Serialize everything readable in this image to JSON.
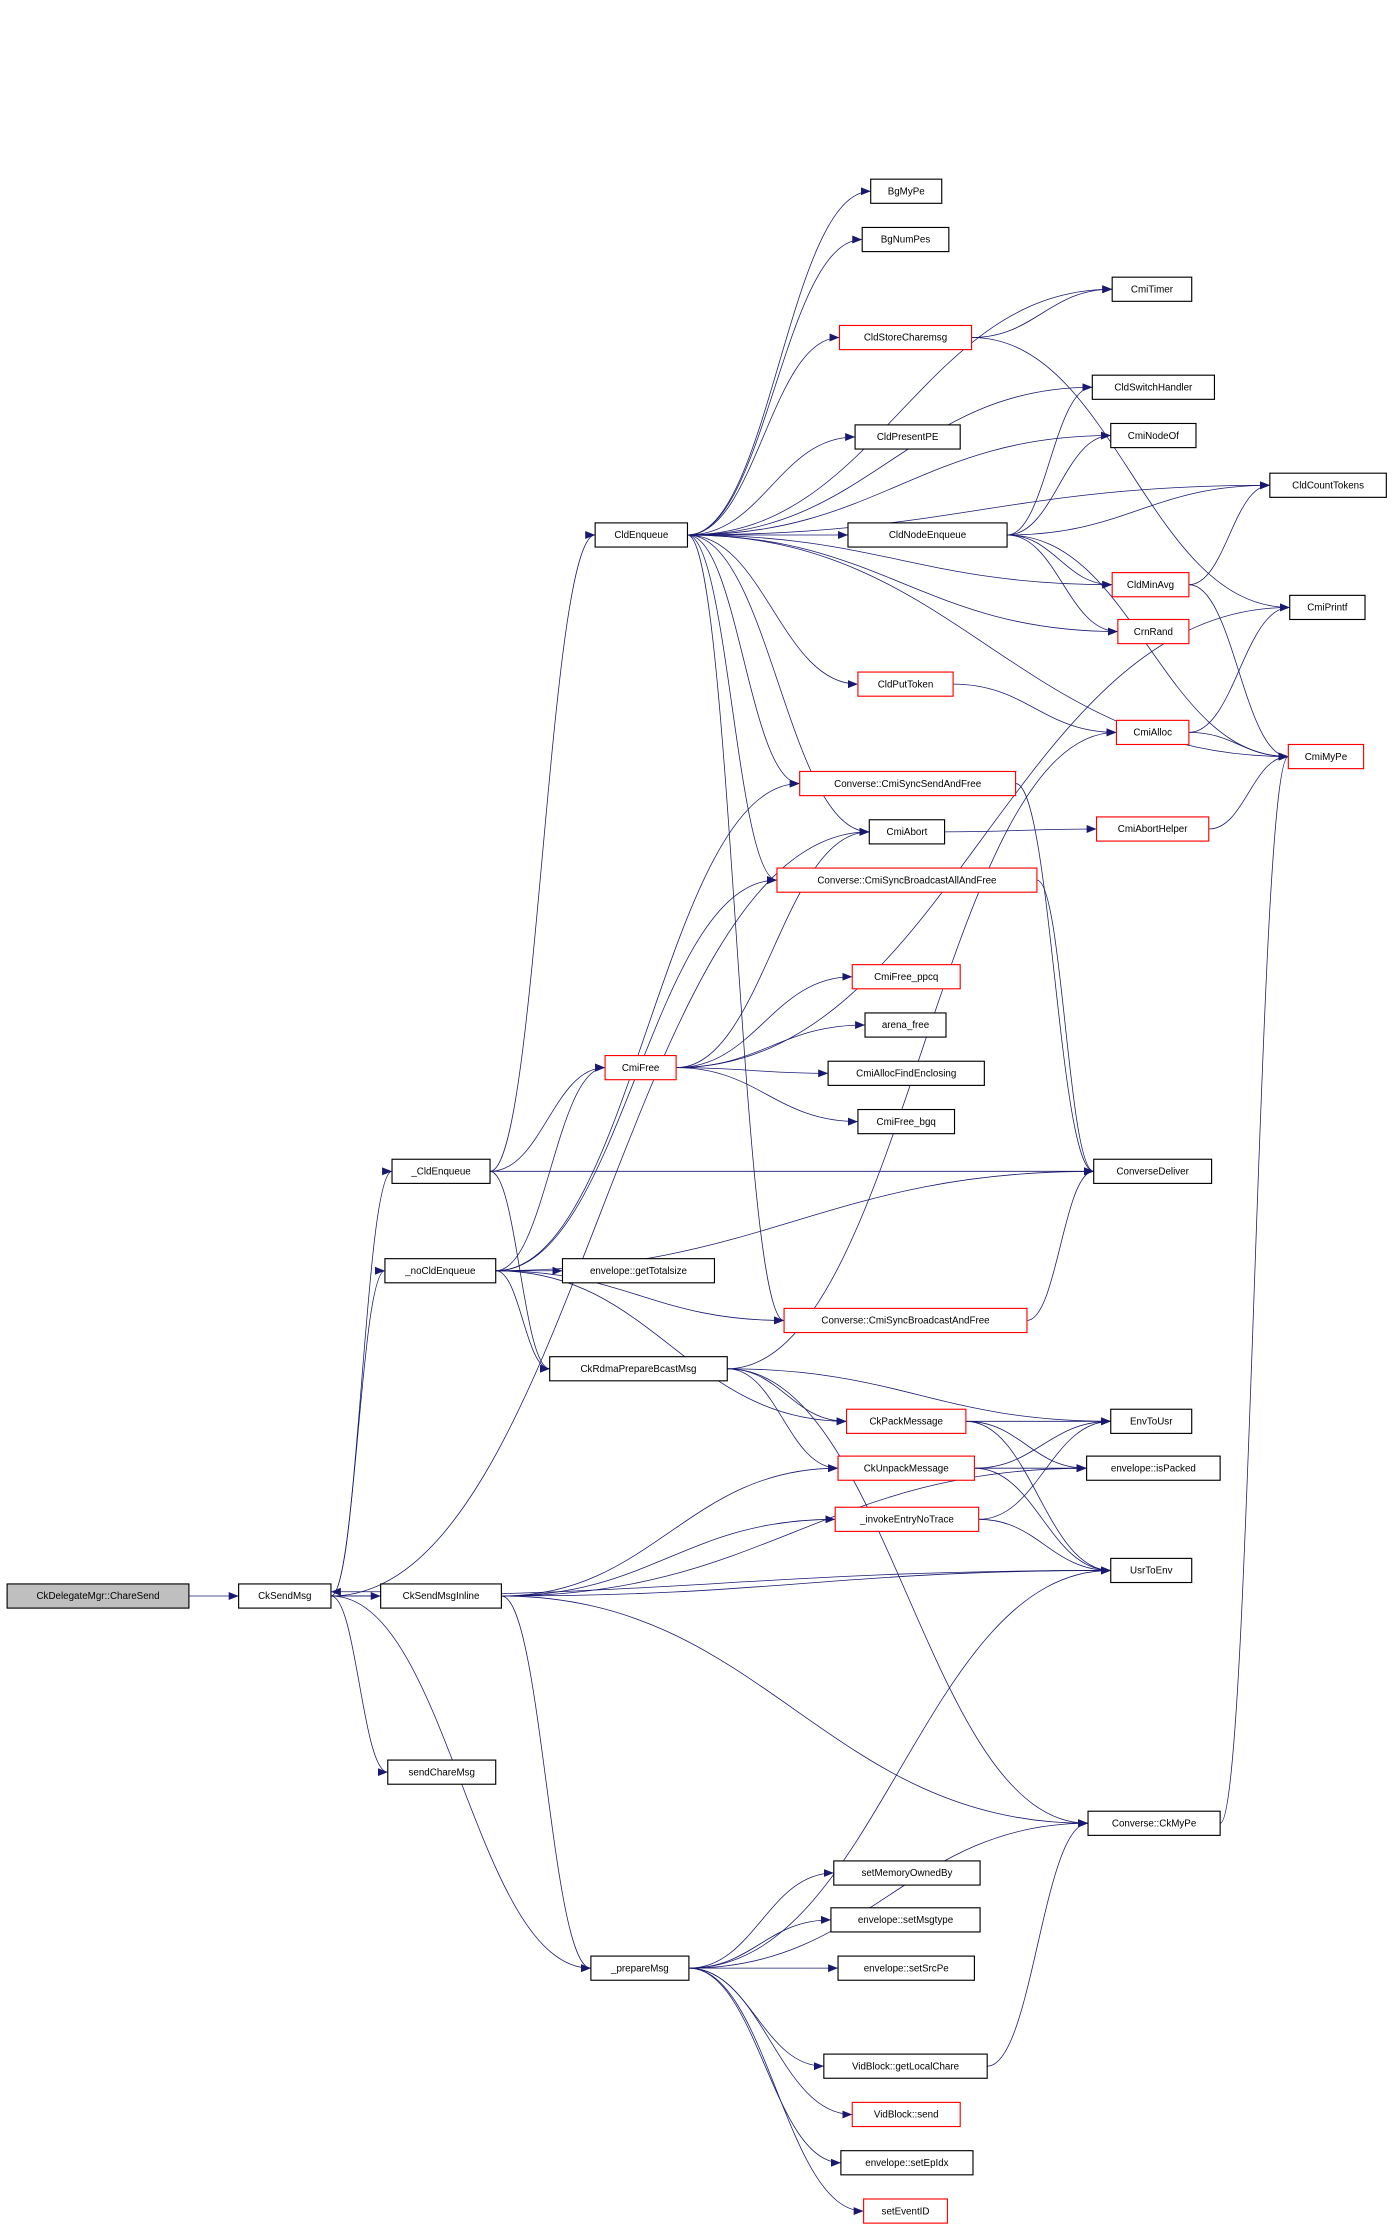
{
  "colors": {
    "edge": "#191970",
    "root_fill": "#bfbfbf",
    "link_border": "#000000",
    "undocumented_border": "#ff0000"
  },
  "nodes": [
    {
      "id": "root",
      "label": "CkDelegateMgr::ChareSend",
      "kind": "root"
    },
    {
      "id": "CkSendMsg",
      "label": "CkSendMsg",
      "kind": "black"
    },
    {
      "id": "CkSendMsgInline",
      "label": "CkSendMsgInline",
      "kind": "black"
    },
    {
      "id": "sendChareMsg",
      "label": "sendChareMsg",
      "kind": "black"
    },
    {
      "id": "_prepareMsg",
      "label": "_prepareMsg",
      "kind": "black"
    },
    {
      "id": "_CldEnqueue",
      "label": "_CldEnqueue",
      "kind": "black"
    },
    {
      "id": "_noCldEnqueue",
      "label": "_noCldEnqueue",
      "kind": "black"
    },
    {
      "id": "CldEnqueue",
      "label": "CldEnqueue",
      "kind": "black"
    },
    {
      "id": "getTotalsize",
      "label": "envelope::getTotalsize",
      "kind": "black"
    },
    {
      "id": "CkRdma",
      "label": "CkRdmaPrepareBcastMsg",
      "kind": "black"
    },
    {
      "id": "CmiFree",
      "label": "CmiFree",
      "kind": "red"
    },
    {
      "id": "CmiFree_ppcq",
      "label": "CmiFree_ppcq",
      "kind": "red"
    },
    {
      "id": "arena_free",
      "label": "arena_free",
      "kind": "black"
    },
    {
      "id": "CmiAllocFindEnclosing",
      "label": "CmiAllocFindEnclosing",
      "kind": "black"
    },
    {
      "id": "CmiFree_bgq",
      "label": "CmiFree_bgq",
      "kind": "black"
    },
    {
      "id": "ConverseDeliver",
      "label": "ConverseDeliver",
      "kind": "black"
    },
    {
      "id": "SyncBcast",
      "label": "Converse::CmiSyncBroadcastAndFree",
      "kind": "red"
    },
    {
      "id": "SyncSend",
      "label": "Converse::CmiSyncSendAndFree",
      "kind": "red"
    },
    {
      "id": "CmiAbort",
      "label": "CmiAbort",
      "kind": "black"
    },
    {
      "id": "SyncBcastAll",
      "label": "Converse::CmiSyncBroadcastAllAndFree",
      "kind": "red"
    },
    {
      "id": "BgMyPe",
      "label": "BgMyPe",
      "kind": "black"
    },
    {
      "id": "BgNumPes",
      "label": "BgNumPes",
      "kind": "black"
    },
    {
      "id": "CmiTimer",
      "label": "CmiTimer",
      "kind": "black"
    },
    {
      "id": "CldStoreCharemsg",
      "label": "CldStoreCharemsg",
      "kind": "red"
    },
    {
      "id": "CldSwitchHandler",
      "label": "CldSwitchHandler",
      "kind": "black"
    },
    {
      "id": "CldPresentPE",
      "label": "CldPresentPE",
      "kind": "black"
    },
    {
      "id": "CmiNodeOf",
      "label": "CmiNodeOf",
      "kind": "black"
    },
    {
      "id": "CldNodeEnqueue",
      "label": "CldNodeEnqueue",
      "kind": "black"
    },
    {
      "id": "CldCountTokens",
      "label": "CldCountTokens",
      "kind": "black"
    },
    {
      "id": "CldMinAvg",
      "label": "CldMinAvg",
      "kind": "red"
    },
    {
      "id": "CrnRand",
      "label": "CrnRand",
      "kind": "red"
    },
    {
      "id": "CmiPrintf",
      "label": "CmiPrintf",
      "kind": "black"
    },
    {
      "id": "CldPutToken",
      "label": "CldPutToken",
      "kind": "red"
    },
    {
      "id": "CmiAlloc",
      "label": "CmiAlloc",
      "kind": "red"
    },
    {
      "id": "CmiMyPe",
      "label": "CmiMyPe",
      "kind": "red"
    },
    {
      "id": "CmiAbortHelper",
      "label": "CmiAbortHelper",
      "kind": "red"
    },
    {
      "id": "CkPackMessage",
      "label": "CkPackMessage",
      "kind": "red"
    },
    {
      "id": "CkUnpackMessage",
      "label": "CkUnpackMessage",
      "kind": "red"
    },
    {
      "id": "invokeEntry",
      "label": "_invokeEntryNoTrace",
      "kind": "red"
    },
    {
      "id": "EnvToUsr",
      "label": "EnvToUsr",
      "kind": "black"
    },
    {
      "id": "isPacked",
      "label": "envelope::isPacked",
      "kind": "black"
    },
    {
      "id": "UsrToEnv",
      "label": "UsrToEnv",
      "kind": "black"
    },
    {
      "id": "CkMyPe",
      "label": "Converse::CkMyPe",
      "kind": "black"
    },
    {
      "id": "setMemoryOwnedBy",
      "label": "setMemoryOwnedBy",
      "kind": "black"
    },
    {
      "id": "setMsgtype",
      "label": "envelope::setMsgtype",
      "kind": "black"
    },
    {
      "id": "setSrcPe",
      "label": "envelope::setSrcPe",
      "kind": "black"
    },
    {
      "id": "getLocalChare",
      "label": "VidBlock::getLocalChare",
      "kind": "black"
    },
    {
      "id": "VidBlockSend",
      "label": "VidBlock::send",
      "kind": "red"
    },
    {
      "id": "setEpIdx",
      "label": "envelope::setEpIdx",
      "kind": "black"
    },
    {
      "id": "setEventID",
      "label": "setEventID",
      "kind": "red"
    }
  ],
  "edges": [
    [
      "root",
      "CkSendMsg"
    ],
    [
      "CkSendMsg",
      "_CldEnqueue"
    ],
    [
      "CkSendMsg",
      "_noCldEnqueue"
    ],
    [
      "CkSendMsg",
      "CkSendMsgInline"
    ],
    [
      "CkSendMsg",
      "sendChareMsg"
    ],
    [
      "CkSendMsg",
      "_prepareMsg"
    ],
    [
      "CkSendMsg",
      "UsrToEnv"
    ],
    [
      "CkSendMsg",
      "CmiAbort"
    ],
    [
      "CkSendMsgInline",
      "CkSendMsg"
    ],
    [
      "CkSendMsgInline",
      "CkUnpackMessage"
    ],
    [
      "CkSendMsgInline",
      "invokeEntry"
    ],
    [
      "CkSendMsgInline",
      "isPacked"
    ],
    [
      "CkSendMsgInline",
      "UsrToEnv"
    ],
    [
      "CkSendMsgInline",
      "CkMyPe"
    ],
    [
      "CkSendMsgInline",
      "_prepareMsg"
    ],
    [
      "_CldEnqueue",
      "CldEnqueue"
    ],
    [
      "_CldEnqueue",
      "CmiFree"
    ],
    [
      "_CldEnqueue",
      "ConverseDeliver"
    ],
    [
      "_CldEnqueue",
      "CkRdma"
    ],
    [
      "_noCldEnqueue",
      "SyncSend"
    ],
    [
      "_noCldEnqueue",
      "SyncBcastAll"
    ],
    [
      "_noCldEnqueue",
      "CmiFree"
    ],
    [
      "_noCldEnqueue",
      "ConverseDeliver"
    ],
    [
      "_noCldEnqueue",
      "getTotalsize"
    ],
    [
      "_noCldEnqueue",
      "SyncBcast"
    ],
    [
      "_noCldEnqueue",
      "CkRdma"
    ],
    [
      "_noCldEnqueue",
      "CkPackMessage"
    ],
    [
      "CldEnqueue",
      "CldCountTokens"
    ],
    [
      "CldEnqueue",
      "BgMyPe"
    ],
    [
      "CldEnqueue",
      "BgNumPes"
    ],
    [
      "CldEnqueue",
      "CmiTimer"
    ],
    [
      "CldEnqueue",
      "CldStoreCharemsg"
    ],
    [
      "CldEnqueue",
      "CldSwitchHandler"
    ],
    [
      "CldEnqueue",
      "CldPresentPE"
    ],
    [
      "CldEnqueue",
      "CmiNodeOf"
    ],
    [
      "CldEnqueue",
      "CldNodeEnqueue"
    ],
    [
      "CldEnqueue",
      "CldMinAvg"
    ],
    [
      "CldEnqueue",
      "CrnRand"
    ],
    [
      "CldEnqueue",
      "CldPutToken"
    ],
    [
      "CldEnqueue",
      "CmiMyPe"
    ],
    [
      "CldEnqueue",
      "SyncSend"
    ],
    [
      "CldEnqueue",
      "CmiAbort"
    ],
    [
      "CldEnqueue",
      "SyncBcastAll"
    ],
    [
      "CldEnqueue",
      "SyncBcast"
    ],
    [
      "CldStoreCharemsg",
      "CmiTimer"
    ],
    [
      "CldStoreCharemsg",
      "CmiPrintf"
    ],
    [
      "CldNodeEnqueue",
      "CldSwitchHandler"
    ],
    [
      "CldNodeEnqueue",
      "CmiNodeOf"
    ],
    [
      "CldNodeEnqueue",
      "CldCountTokens"
    ],
    [
      "CldNodeEnqueue",
      "CmiMyPe"
    ],
    [
      "CldNodeEnqueue",
      "CldMinAvg"
    ],
    [
      "CldNodeEnqueue",
      "CrnRand"
    ],
    [
      "CldMinAvg",
      "CldCountTokens"
    ],
    [
      "CldMinAvg",
      "CmiMyPe"
    ],
    [
      "CldPutToken",
      "CmiAlloc"
    ],
    [
      "CmiAlloc",
      "CmiPrintf"
    ],
    [
      "CmiAlloc",
      "CmiMyPe"
    ],
    [
      "CmiAbort",
      "CmiAbortHelper"
    ],
    [
      "CmiAbortHelper",
      "CmiMyPe"
    ],
    [
      "SyncSend",
      "ConverseDeliver"
    ],
    [
      "SyncBcastAll",
      "ConverseDeliver"
    ],
    [
      "SyncBcast",
      "ConverseDeliver"
    ],
    [
      "CmiFree",
      "CmiFree_ppcq"
    ],
    [
      "CmiFree",
      "arena_free"
    ],
    [
      "CmiFree",
      "CmiAllocFindEnclosing"
    ],
    [
      "CmiFree",
      "CmiFree_bgq"
    ],
    [
      "CmiFree",
      "CmiAbort"
    ],
    [
      "CmiFree",
      "CmiPrintf"
    ],
    [
      "CkRdma",
      "EnvToUsr"
    ],
    [
      "CkRdma",
      "CkPackMessage"
    ],
    [
      "CkRdma",
      "CkUnpackMessage"
    ],
    [
      "CkRdma",
      "CmiAlloc"
    ],
    [
      "CkRdma",
      "CkMyPe"
    ],
    [
      "CkPackMessage",
      "EnvToUsr"
    ],
    [
      "CkPackMessage",
      "isPacked"
    ],
    [
      "CkPackMessage",
      "UsrToEnv"
    ],
    [
      "CkUnpackMessage",
      "EnvToUsr"
    ],
    [
      "CkUnpackMessage",
      "isPacked"
    ],
    [
      "CkUnpackMessage",
      "UsrToEnv"
    ],
    [
      "invokeEntry",
      "EnvToUsr"
    ],
    [
      "invokeEntry",
      "UsrToEnv"
    ],
    [
      "CkMyPe",
      "CmiMyPe"
    ],
    [
      "_prepareMsg",
      "UsrToEnv"
    ],
    [
      "_prepareMsg",
      "setMemoryOwnedBy"
    ],
    [
      "_prepareMsg",
      "setMsgtype"
    ],
    [
      "_prepareMsg",
      "setSrcPe"
    ],
    [
      "_prepareMsg",
      "CkMyPe"
    ],
    [
      "_prepareMsg",
      "getLocalChare"
    ],
    [
      "_prepareMsg",
      "VidBlockSend"
    ],
    [
      "_prepareMsg",
      "setEpIdx"
    ],
    [
      "_prepareMsg",
      "setEventID"
    ],
    [
      "getLocalChare",
      "CkMyPe"
    ]
  ]
}
